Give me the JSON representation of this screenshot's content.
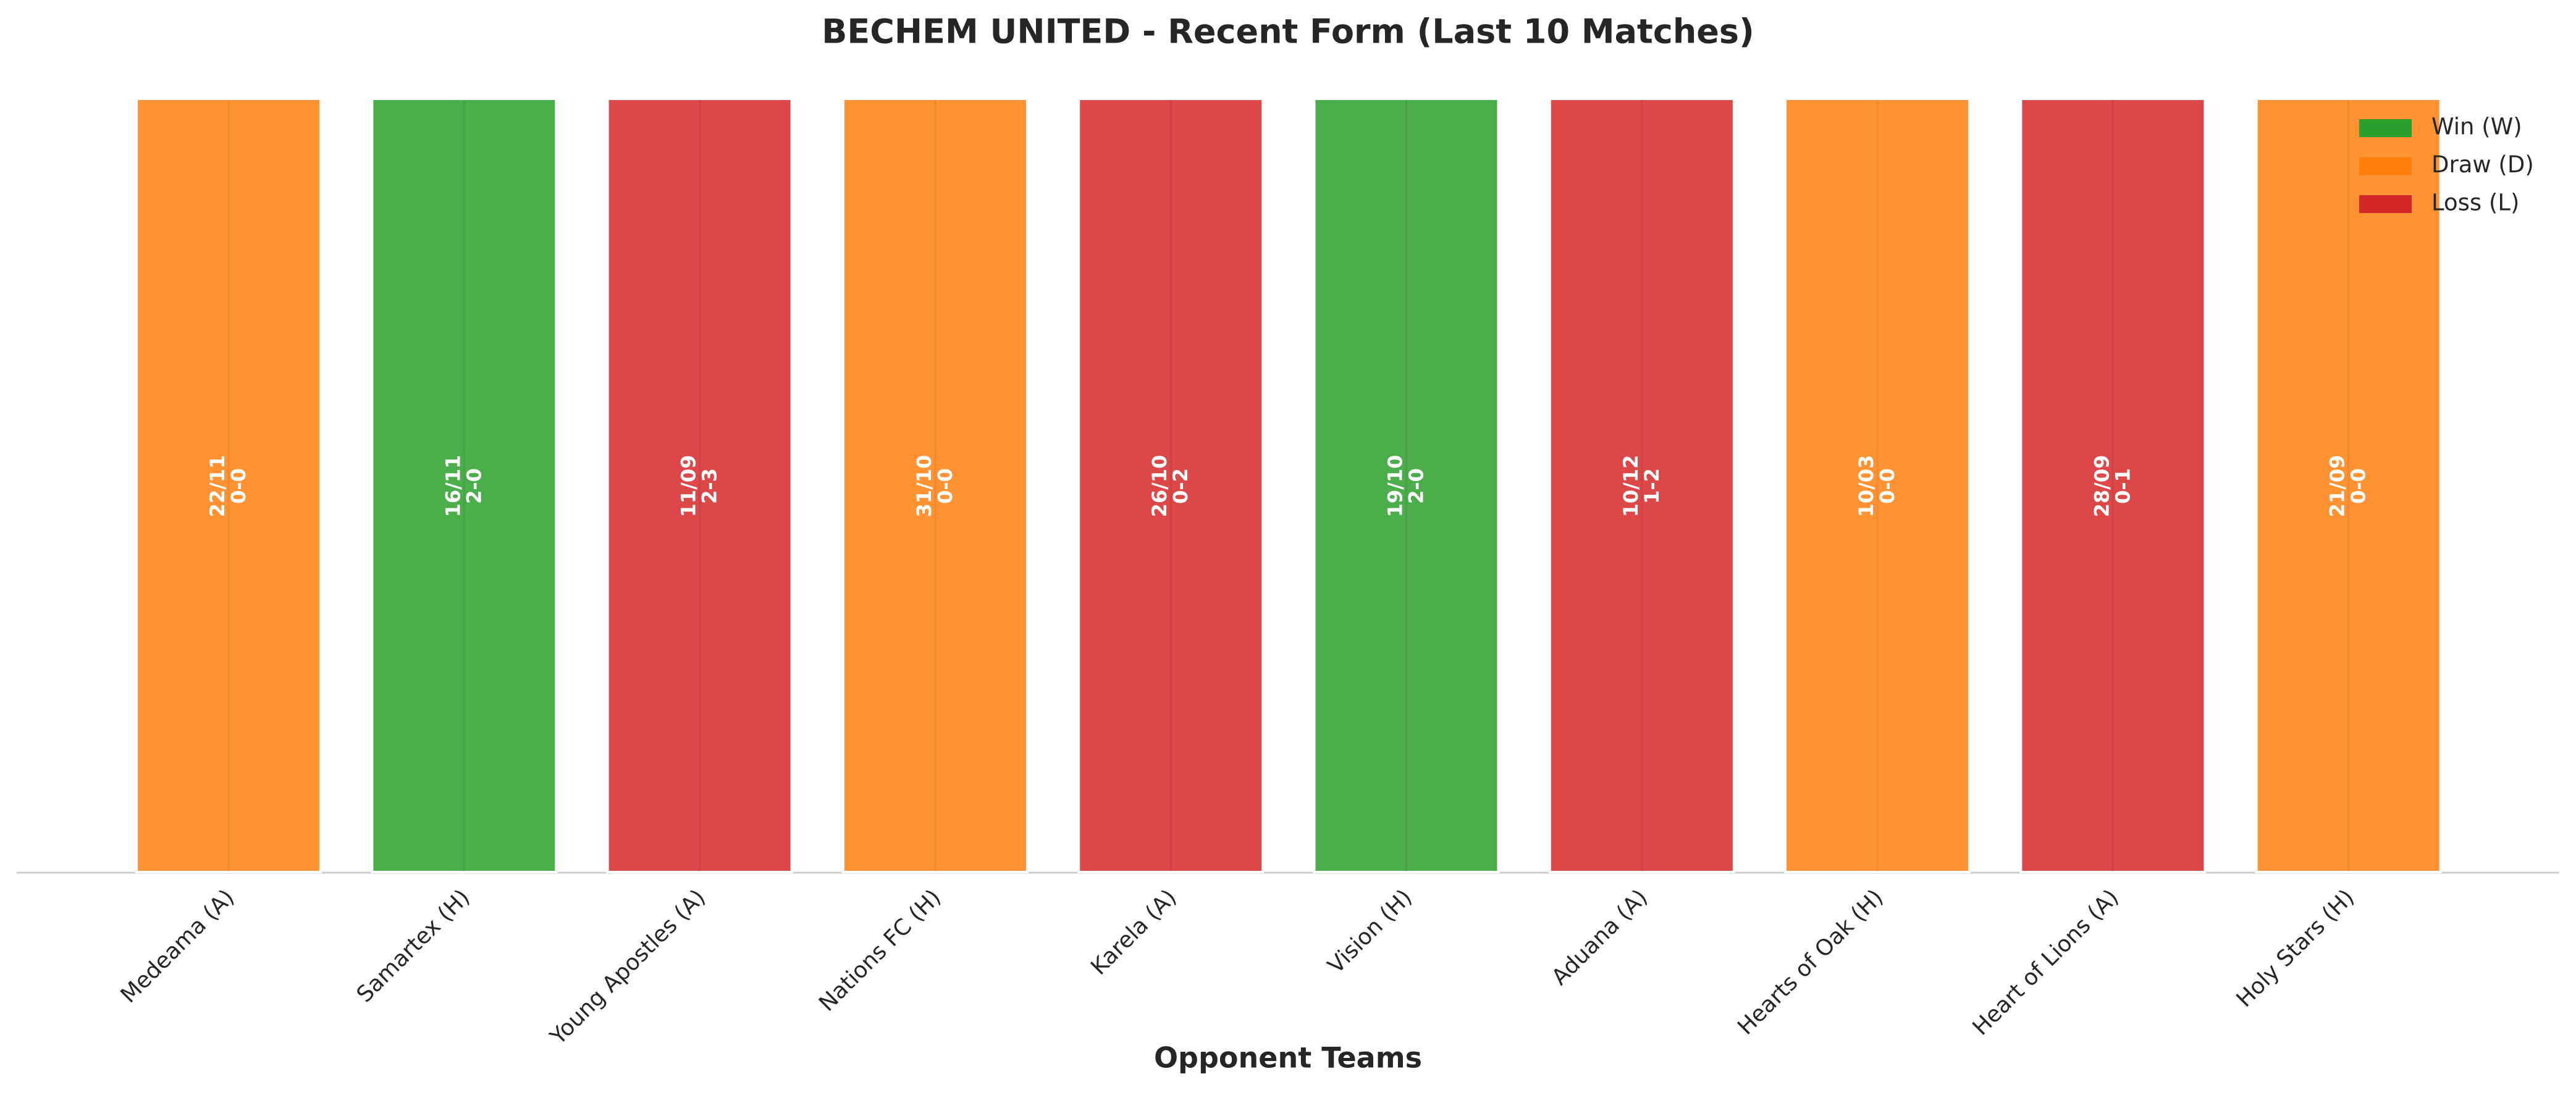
{
  "chart_data": {
    "type": "bar",
    "title": "BECHEM UNITED - Recent Form (Last 10 Matches)",
    "x_label": "Opponent Teams",
    "categories": [
      "Medeama (A)",
      "Samartex (H)",
      "Young Apostles (A)",
      "Nations FC (H)",
      "Karela (A)",
      "Vision (H)",
      "Aduana (A)",
      "Hearts of Oak (H)",
      "Heart of Lions (A)",
      "Holy Stars (H)"
    ],
    "dates": [
      "22/11",
      "16/11",
      "11/09",
      "31/10",
      "26/10",
      "19/10",
      "10/12",
      "10/03",
      "28/09",
      "21/09"
    ],
    "scores": [
      "0-0",
      "2-0",
      "2-3",
      "0-0",
      "0-2",
      "2-0",
      "1-2",
      "0-0",
      "0-1",
      "0-0"
    ],
    "series": [
      {
        "name": "Win (W)",
        "color": "#2ca02c",
        "values": [
          null,
          1,
          null,
          null,
          null,
          1,
          null,
          null,
          null,
          null
        ]
      },
      {
        "name": "Draw (D)",
        "color": "#ff7f0e",
        "values": [
          1,
          null,
          null,
          1,
          null,
          null,
          null,
          1,
          null,
          1
        ]
      },
      {
        "name": "Loss (L)",
        "color": "#d62728",
        "values": [
          null,
          null,
          1,
          null,
          1,
          null,
          1,
          null,
          1,
          null
        ]
      }
    ],
    "legend": "upper right"
  }
}
